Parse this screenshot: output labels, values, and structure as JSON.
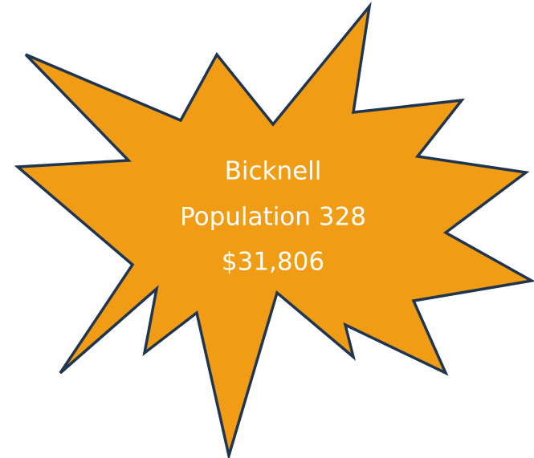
{
  "lines": [
    "Bicknell",
    "Population 328",
    "$31,806"
  ]
}
